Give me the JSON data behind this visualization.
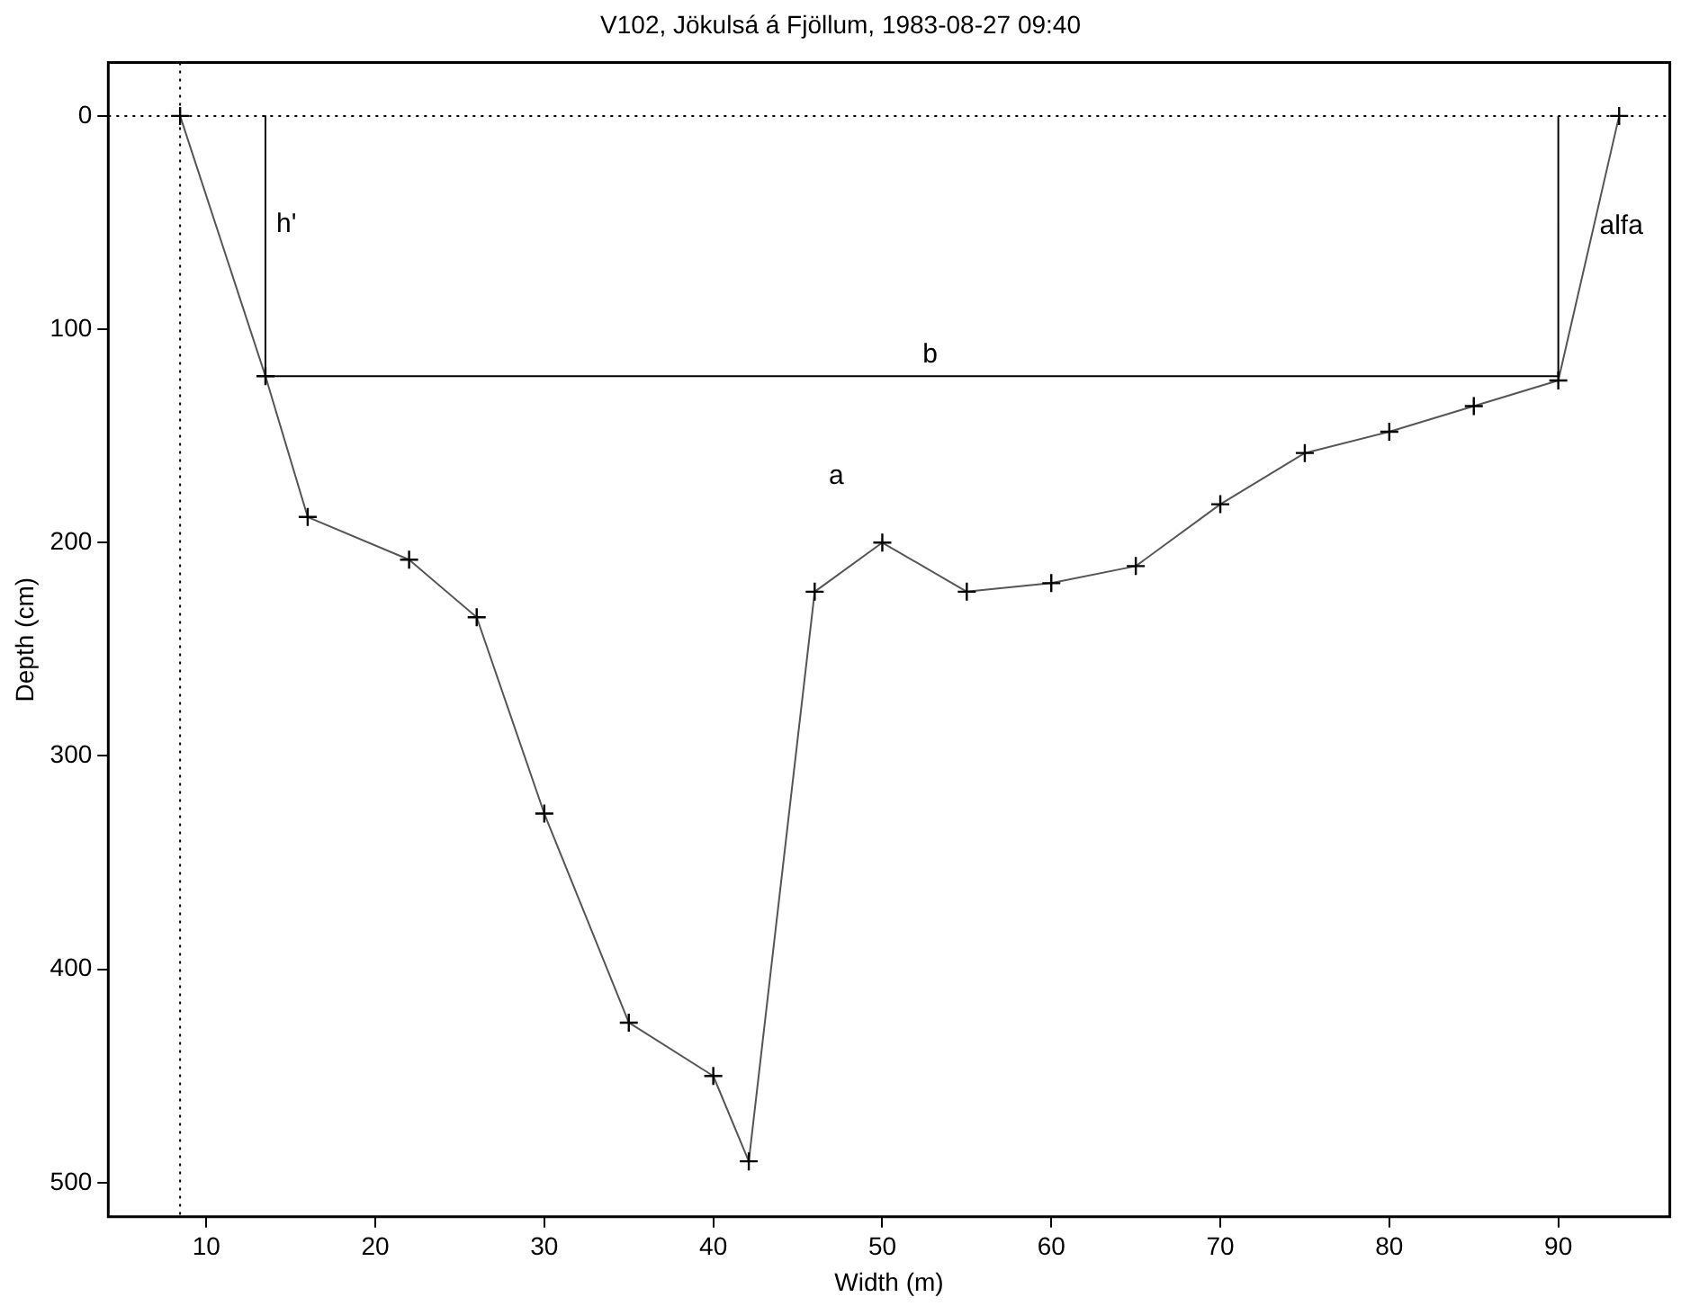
{
  "chart_data": {
    "type": "line",
    "title": "V102, Jökulsá á Fjöllum, 1983-08-27 09:40",
    "xlabel": "Width (m)",
    "ylabel": "Depth (cm)",
    "xlim": [
      4.2,
      96.6
    ],
    "xticks": [
      10,
      20,
      30,
      40,
      50,
      60,
      70,
      80,
      90
    ],
    "ylim": [
      516,
      -25
    ],
    "yticks": [
      0,
      100,
      200,
      300,
      400,
      500
    ],
    "grid": false,
    "legend": false,
    "series": [
      {
        "color": "#555555",
        "marker": "cross",
        "line_style": "solid",
        "x": [
          8.45,
          13.5,
          16,
          22,
          26,
          30,
          35,
          40,
          42.1,
          46,
          50,
          55,
          60,
          65,
          70,
          75,
          80,
          85,
          90,
          93.6
        ],
        "values": [
          0,
          122,
          188,
          208,
          235,
          327,
          425,
          450,
          490,
          223,
          200,
          223,
          219,
          211,
          182,
          158,
          148,
          136,
          124,
          0
        ]
      },
      {
        "color": "#000000",
        "line_style": "solid",
        "x": [
          13.5,
          13.5,
          90,
          90
        ],
        "values": [
          0,
          122,
          122,
          0
        ]
      }
    ],
    "ref_lines": [
      {
        "axis": "x",
        "value": 8.45,
        "line_style": "dotted",
        "color": "#000000"
      },
      {
        "axis": "y",
        "value": 0,
        "line_style": "dotted",
        "color": "#000000"
      }
    ],
    "annotations": [
      {
        "text": "h'",
        "x": 13.5,
        "y": 61
      },
      {
        "text": "b",
        "x": 51.75,
        "y": 122
      },
      {
        "text": "alfa",
        "x": 91.8,
        "y": 62
      },
      "a"
    ]
  }
}
